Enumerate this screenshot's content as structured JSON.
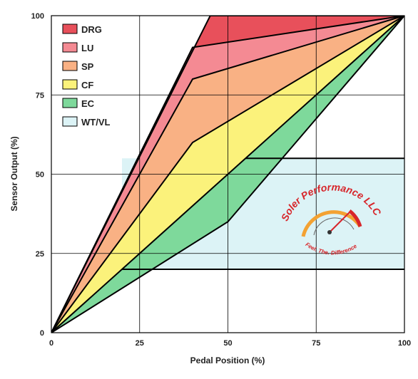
{
  "chart_data": {
    "type": "area",
    "xlabel": "Pedal Position (%)",
    "ylabel": "Sensor Output (%)",
    "xlim": [
      0,
      100
    ],
    "ylim": [
      0,
      100
    ],
    "x_ticks": [
      "0",
      "25",
      "50",
      "75",
      "100"
    ],
    "y_ticks": [
      "0",
      "25",
      "50",
      "75",
      "100"
    ],
    "grid": true,
    "legend_position": "top-left",
    "series": [
      {
        "name": "DRG",
        "color": "#e8505b",
        "upper": [
          [
            0,
            0
          ],
          [
            45,
            100
          ],
          [
            100,
            100
          ]
        ],
        "lower": [
          [
            0,
            0
          ],
          [
            40,
            90
          ],
          [
            100,
            100
          ]
        ]
      },
      {
        "name": "LU",
        "color": "#f48a93",
        "upper": [
          [
            0,
            0
          ],
          [
            40,
            90
          ],
          [
            100,
            100
          ]
        ],
        "lower": [
          [
            0,
            0
          ],
          [
            40,
            80
          ],
          [
            100,
            100
          ]
        ]
      },
      {
        "name": "SP",
        "color": "#f9b184",
        "upper": [
          [
            0,
            0
          ],
          [
            40,
            80
          ],
          [
            100,
            100
          ]
        ],
        "lower": [
          [
            0,
            0
          ],
          [
            40,
            60
          ],
          [
            100,
            100
          ]
        ]
      },
      {
        "name": "CF",
        "color": "#fbf27b",
        "upper": [
          [
            0,
            0
          ],
          [
            40,
            60
          ],
          [
            100,
            100
          ]
        ],
        "lower": [
          [
            0,
            0
          ],
          [
            55,
            55
          ],
          [
            100,
            100
          ]
        ]
      },
      {
        "name": "EC",
        "color": "#7ed99b",
        "upper": [
          [
            0,
            0
          ],
          [
            55,
            55
          ],
          [
            100,
            100
          ]
        ],
        "lower": [
          [
            0,
            0
          ],
          [
            50,
            35
          ],
          [
            100,
            100
          ]
        ]
      },
      {
        "name": "WT/VL",
        "color": "#dcf3f6",
        "box": {
          "x": [
            20,
            100
          ],
          "y": [
            20,
            55
          ]
        }
      }
    ]
  },
  "logo": {
    "brand": "Soler Performance LLC",
    "tagline": "Feel. The. Difference"
  }
}
